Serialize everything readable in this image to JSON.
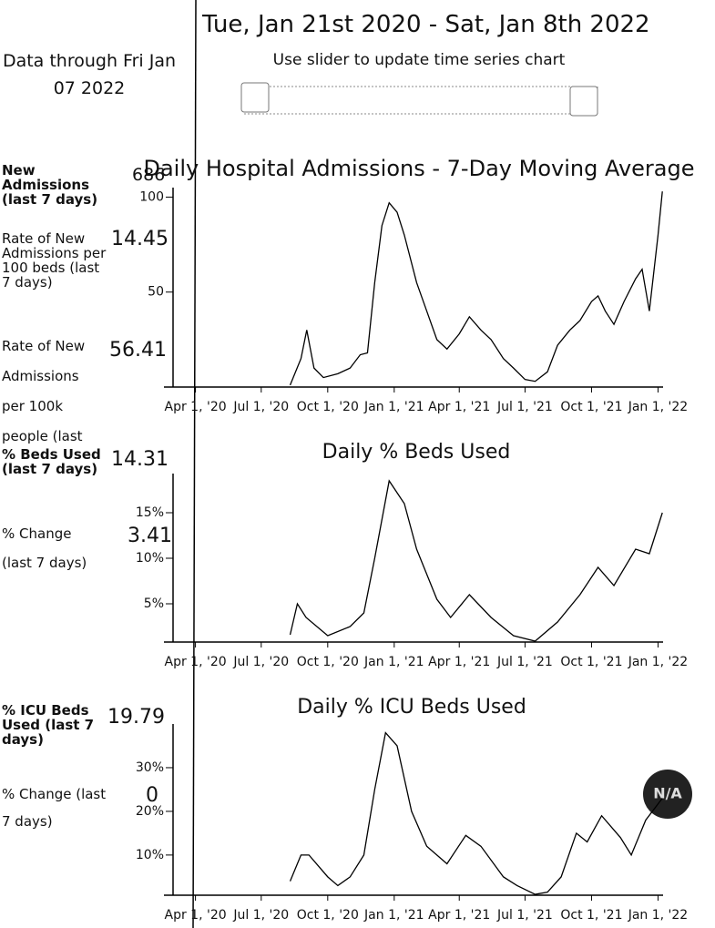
{
  "header": {
    "date_range": "Tue, Jan 21st 2020 - Sat, Jan 8th 2022",
    "slider_hint": "Use slider to update time series chart",
    "data_through": "Data through Fri Jan 07 2022"
  },
  "stats": [
    {
      "label": "New Admissions (last 7 days)",
      "value": 686
    },
    {
      "label": "Rate of New Admissions per 100 beds (last 7 days)",
      "value": 14.45
    },
    {
      "label": "Rate of New Admissions per 100k people (last",
      "value": 56.41
    },
    {
      "label": "% Beds Used (last 7 days)",
      "value": 14.31
    },
    {
      "label": "% Change (last 7 days)",
      "value": 3.41
    },
    {
      "label": "% ICU Beds Used (last 7 days)",
      "value": 19.79
    },
    {
      "label": "% Change (last 7 days)",
      "value": 0
    }
  ],
  "badge": "N/A",
  "chart_data": [
    {
      "type": "line",
      "title": "Daily Hospital Admissions - 7-Day Moving Average",
      "color": "#000000",
      "x": [
        "2020-08-10",
        "2020-08-25",
        "2020-09-02",
        "2020-09-12",
        "2020-09-25",
        "2020-10-15",
        "2020-11-01",
        "2020-11-15",
        "2020-11-25",
        "2020-12-05",
        "2020-12-15",
        "2020-12-25",
        "2021-01-05",
        "2021-01-15",
        "2021-02-01",
        "2021-02-15",
        "2021-03-01",
        "2021-03-15",
        "2021-04-01",
        "2021-04-15",
        "2021-05-01",
        "2021-05-15",
        "2021-06-01",
        "2021-06-15",
        "2021-07-01",
        "2021-07-15",
        "2021-08-01",
        "2021-08-15",
        "2021-09-01",
        "2021-09-15",
        "2021-10-01",
        "2021-10-10",
        "2021-10-20",
        "2021-11-01",
        "2021-11-15",
        "2021-12-01",
        "2021-12-10",
        "2021-12-20",
        "2022-01-01",
        "2022-01-07"
      ],
      "values": [
        1,
        15,
        30,
        10,
        5,
        7,
        10,
        17,
        18,
        55,
        85,
        97,
        92,
        80,
        55,
        40,
        25,
        20,
        28,
        37,
        30,
        25,
        15,
        10,
        4,
        3,
        8,
        22,
        30,
        35,
        45,
        48,
        40,
        33,
        45,
        57,
        62,
        40,
        80,
        103
      ],
      "xlim": [
        "2020-03-01",
        "2022-01-08"
      ],
      "xticks": [
        {
          "value": "2020-04-01",
          "label": "Apr 1, '20"
        },
        {
          "value": "2020-07-01",
          "label": "Jul 1, '20"
        },
        {
          "value": "2020-10-01",
          "label": "Oct 1, '20"
        },
        {
          "value": "2021-01-01",
          "label": "Jan 1, '21"
        },
        {
          "value": "2021-04-01",
          "label": "Apr 1, '21"
        },
        {
          "value": "2021-07-01",
          "label": "Jul 1, '21"
        },
        {
          "value": "2021-10-01",
          "label": "Oct 1, '21"
        },
        {
          "value": "2022-01-01",
          "label": "Jan 1, '22"
        }
      ],
      "ylim": [
        0,
        105
      ],
      "yticks": [
        50,
        100
      ]
    },
    {
      "type": "line",
      "title": "Daily % Beds Used",
      "color": "#000000",
      "x": [
        "2020-08-10",
        "2020-08-20",
        "2020-09-01",
        "2020-10-01",
        "2020-11-01",
        "2020-11-20",
        "2020-12-05",
        "2020-12-25",
        "2021-01-15",
        "2021-02-01",
        "2021-03-01",
        "2021-03-20",
        "2021-04-15",
        "2021-05-15",
        "2021-06-15",
        "2021-07-15",
        "2021-08-15",
        "2021-09-15",
        "2021-10-10",
        "2021-11-01",
        "2021-12-01",
        "2021-12-20",
        "2022-01-07"
      ],
      "values": [
        1.6,
        5,
        3.5,
        1.5,
        2.5,
        4,
        10,
        18.5,
        16,
        11,
        5.5,
        3.5,
        6,
        3.5,
        1.5,
        0.9,
        3,
        6,
        9,
        7,
        11,
        10.5,
        15
      ],
      "xlim": [
        "2020-03-01",
        "2022-01-08"
      ],
      "xticks": [
        {
          "value": "2020-04-01",
          "label": "Apr 1, '20"
        },
        {
          "value": "2020-07-01",
          "label": "Jul 1, '20"
        },
        {
          "value": "2020-10-01",
          "label": "Oct 1, '20"
        },
        {
          "value": "2021-01-01",
          "label": "Jan 1, '21"
        },
        {
          "value": "2021-04-01",
          "label": "Apr 1, '21"
        },
        {
          "value": "2021-07-01",
          "label": "Jul 1, '21"
        },
        {
          "value": "2021-10-01",
          "label": "Oct 1, '21"
        },
        {
          "value": "2022-01-01",
          "label": "Jan 1, '22"
        }
      ],
      "ylim": [
        0.8,
        19.3
      ],
      "yticks": [
        {
          "value": 5,
          "label": "5%"
        },
        {
          "value": 10,
          "label": "10%"
        },
        {
          "value": 15,
          "label": "15%"
        }
      ]
    },
    {
      "type": "line",
      "title": "Daily % ICU Beds Used",
      "color": "#000000",
      "x": [
        "2020-08-10",
        "2020-08-25",
        "2020-09-05",
        "2020-10-01",
        "2020-10-15",
        "2020-11-01",
        "2020-11-20",
        "2020-12-05",
        "2020-12-20",
        "2021-01-05",
        "2021-01-25",
        "2021-02-15",
        "2021-03-15",
        "2021-04-10",
        "2021-05-01",
        "2021-06-01",
        "2021-06-20",
        "2021-07-15",
        "2021-08-01",
        "2021-08-20",
        "2021-09-10",
        "2021-09-25",
        "2021-10-15",
        "2021-11-10",
        "2021-11-25",
        "2021-12-15",
        "2022-01-07"
      ],
      "values": [
        4,
        10,
        10,
        5,
        3,
        5,
        10,
        25,
        38,
        35,
        20,
        12,
        8,
        14.5,
        12,
        5,
        3,
        1,
        1.5,
        5,
        15,
        13,
        19,
        14,
        10,
        18,
        23
      ],
      "xlim": [
        "2020-03-01",
        "2022-01-08"
      ],
      "xticks": [
        {
          "value": "2020-04-01",
          "label": "Apr 1, '20"
        },
        {
          "value": "2020-07-01",
          "label": "Jul 1, '20"
        },
        {
          "value": "2020-10-01",
          "label": "Oct 1, '20"
        },
        {
          "value": "2021-01-01",
          "label": "Jan 1, '21"
        },
        {
          "value": "2021-04-01",
          "label": "Apr 1, '21"
        },
        {
          "value": "2021-07-01",
          "label": "Jul 1, '21"
        },
        {
          "value": "2021-10-01",
          "label": "Oct 1, '21"
        },
        {
          "value": "2022-01-01",
          "label": "Jan 1, '22"
        }
      ],
      "ylim": [
        0.8,
        40
      ],
      "yticks": [
        {
          "value": 10,
          "label": "10%"
        },
        {
          "value": 20,
          "label": "20%"
        },
        {
          "value": 30,
          "label": "30%"
        }
      ]
    }
  ]
}
